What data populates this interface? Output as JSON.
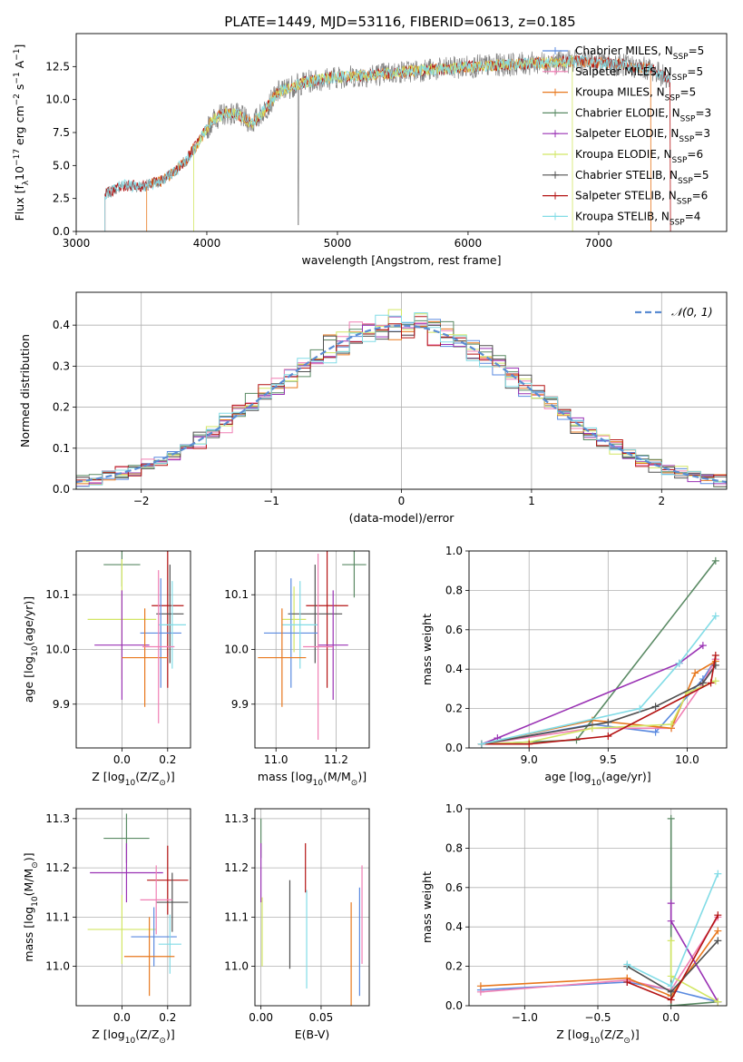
{
  "figure": {
    "title": "PLATE=1449, MJD=53116, FIBERID=0613, z=0.185"
  },
  "colors": {
    "Chabrier MILES": "#5a8ae0",
    "Salpeter MILES": "#f07fb4",
    "Kroupa MILES": "#e8781e",
    "Chabrier ELODIE": "#5a8a64",
    "Salpeter ELODIE": "#9a32b4",
    "Kroupa ELODIE": "#d2e664",
    "Chabrier STELIB": "#505050",
    "Salpeter STELIB": "#b41414",
    "Kroupa STELIB": "#82dce6",
    "observed": "#808080",
    "normal": "#5a8cd2"
  },
  "chart_data": [
    {
      "id": "spectrum",
      "type": "line",
      "xlabel": "wavelength [Angstrom, rest frame]",
      "ylabel_parts": [
        "Flux [f",
        "λ",
        "10",
        "−17",
        " erg cm",
        "−2",
        " s",
        "−1",
        " A",
        "−1",
        "]"
      ],
      "xlim": [
        3000,
        7980
      ],
      "ylim": [
        0,
        15.0
      ],
      "xticks": [
        3000,
        4000,
        5000,
        6000,
        7000
      ],
      "yticks": [
        0.0,
        2.5,
        5.0,
        7.5,
        10.0,
        12.5
      ],
      "ytick_labels": [
        "0.0",
        "2.5",
        "5.0",
        "7.5",
        "10.0",
        "12.5"
      ],
      "legend_position": "right",
      "legend": [
        {
          "name": "Chabrier MILES",
          "n": "5"
        },
        {
          "name": "Salpeter MILES",
          "n": "5"
        },
        {
          "name": "Kroupa MILES",
          "n": "5"
        },
        {
          "name": "Chabrier ELODIE",
          "n": "3"
        },
        {
          "name": "Salpeter ELODIE",
          "n": "3"
        },
        {
          "name": "Kroupa ELODIE",
          "n": "6"
        },
        {
          "name": "Chabrier STELIB",
          "n": "5"
        },
        {
          "name": "Salpeter STELIB",
          "n": "6"
        },
        {
          "name": "Kroupa STELIB",
          "n": "4"
        }
      ],
      "legend_n_label": "N",
      "legend_n_sub": "SSP",
      "observed_anchors": {
        "x": [
          3220,
          3350,
          3500,
          3650,
          3750,
          3850,
          3950,
          4050,
          4150,
          4250,
          4350,
          4450,
          4550,
          4650,
          4750,
          4850,
          5000,
          5200,
          5400,
          5600,
          5800,
          6000,
          6200,
          6400,
          6600,
          6800,
          7000,
          7200,
          7400,
          7550
        ],
        "y": [
          2.8,
          3.5,
          3.4,
          3.8,
          4.5,
          5.5,
          7.0,
          8.5,
          9.0,
          8.8,
          8.2,
          9.3,
          10.6,
          11.0,
          11.3,
          11.5,
          11.7,
          11.8,
          12.0,
          12.2,
          12.3,
          12.5,
          12.6,
          12.7,
          12.8,
          12.9,
          12.8,
          12.6,
          12.3,
          11.5
        ]
      }
    },
    {
      "id": "residuals",
      "type": "histogram",
      "xlabel": "(data-model)/error",
      "ylabel": "Normed distribution",
      "xlim": [
        -2.5,
        2.5
      ],
      "ylim": [
        0,
        0.48
      ],
      "xticks": [
        -2,
        -1,
        0,
        1,
        2
      ],
      "xtick_labels": [
        "−2",
        "−1",
        "0",
        "1",
        "2"
      ],
      "yticks": [
        0.0,
        0.1,
        0.2,
        0.3,
        0.4
      ],
      "ytick_labels": [
        "0.0",
        "0.1",
        "0.2",
        "0.3",
        "0.4"
      ],
      "legend_label": "𝒩(0, 1)",
      "legend_position": "top-right",
      "bin_width": 0.1,
      "grid": true
    },
    {
      "id": "age-vs-Z",
      "type": "errorbar",
      "xlabel_parts": [
        "Z [log",
        "10",
        "(Z/Z",
        "⊙",
        ")]"
      ],
      "ylabel_parts": [
        "age  [log",
        "10",
        "(age/yr)]"
      ],
      "xlim": [
        -0.2,
        0.3
      ],
      "ylim": [
        9.82,
        10.18
      ],
      "xticks": [
        0.0,
        0.2
      ],
      "xtick_labels": [
        "0.0",
        "0.2"
      ],
      "yticks": [
        9.9,
        10.0,
        10.1
      ],
      "ytick_labels": [
        "9.9",
        "10.0",
        "10.1"
      ],
      "points": [
        {
          "model": "Chabrier ELODIE",
          "x": 0.0,
          "xerr": 0.08,
          "y": 10.155,
          "yerr": 0.04
        },
        {
          "model": "Kroupa ELODIE",
          "x": 0.0,
          "xerr": 0.15,
          "y": 10.055,
          "yerr": 0.11
        },
        {
          "model": "Salpeter STELIB",
          "x": 0.2,
          "xerr": 0.07,
          "y": 10.08,
          "yerr": 0.15
        },
        {
          "model": "Chabrier STELIB",
          "x": 0.21,
          "xerr": 0.06,
          "y": 10.065,
          "yerr": 0.09
        },
        {
          "model": "Salpeter ELODIE",
          "x": 0.0,
          "xerr": 0.12,
          "y": 10.008,
          "yerr": 0.1
        },
        {
          "model": "Chabrier MILES",
          "x": 0.17,
          "xerr": 0.09,
          "y": 10.03,
          "yerr": 0.1
        },
        {
          "model": "Kroupa STELIB",
          "x": 0.22,
          "xerr": 0.06,
          "y": 10.045,
          "yerr": 0.08
        },
        {
          "model": "Kroupa MILES",
          "x": 0.1,
          "xerr": 0.1,
          "y": 9.985,
          "yerr": 0.09
        },
        {
          "model": "Salpeter MILES",
          "x": 0.16,
          "xerr": 0.07,
          "y": 10.005,
          "yerr": 0.14
        }
      ]
    },
    {
      "id": "age-vs-mass",
      "type": "errorbar",
      "xlabel_parts": [
        "mass [log",
        "10",
        "(M/M",
        "⊙",
        ")]"
      ],
      "xlim": [
        10.93,
        11.31
      ],
      "ylim": [
        9.82,
        10.18
      ],
      "xticks": [
        11.0,
        11.2
      ],
      "xtick_labels": [
        "11.0",
        "11.2"
      ],
      "yticks": [
        9.9,
        10.0,
        10.1
      ],
      "ytick_labels": [
        "9.9",
        "10.0",
        "10.1"
      ],
      "points": [
        {
          "model": "Chabrier ELODIE",
          "x": 11.26,
          "xerr": 0.04,
          "y": 10.155,
          "yerr": 0.06
        },
        {
          "model": "Kroupa ELODIE",
          "x": 11.06,
          "xerr": 0.04,
          "y": 10.055,
          "yerr": 0.06
        },
        {
          "model": "Salpeter STELIB",
          "x": 11.17,
          "xerr": 0.07,
          "y": 10.08,
          "yerr": 0.15
        },
        {
          "model": "Chabrier STELIB",
          "x": 11.13,
          "xerr": 0.09,
          "y": 10.065,
          "yerr": 0.09
        },
        {
          "model": "Salpeter ELODIE",
          "x": 11.19,
          "xerr": 0.05,
          "y": 10.008,
          "yerr": 0.1
        },
        {
          "model": "Chabrier MILES",
          "x": 11.05,
          "xerr": 0.09,
          "y": 10.03,
          "yerr": 0.1
        },
        {
          "model": "Kroupa STELIB",
          "x": 11.08,
          "xerr": 0.06,
          "y": 10.045,
          "yerr": 0.08
        },
        {
          "model": "Kroupa MILES",
          "x": 11.02,
          "xerr": 0.08,
          "y": 9.985,
          "yerr": 0.09
        },
        {
          "model": "Salpeter MILES",
          "x": 11.14,
          "xerr": 0.05,
          "y": 10.005,
          "yerr": 0.17
        }
      ]
    },
    {
      "id": "massweight-vs-age",
      "type": "line",
      "xlabel_parts": [
        "age  [log",
        "10",
        "(age/yr)]"
      ],
      "ylabel": "mass weight",
      "xlim": [
        8.62,
        10.25
      ],
      "ylim": [
        0,
        1.0
      ],
      "xticks": [
        9.0,
        9.5,
        10.0
      ],
      "xtick_labels": [
        "9.0",
        "9.5",
        "10.0"
      ],
      "yticks": [
        0.0,
        0.2,
        0.4,
        0.6,
        0.8,
        1.0
      ],
      "ytick_labels": [
        "0.0",
        "0.2",
        "0.4",
        "0.6",
        "0.8",
        "1.0"
      ],
      "series": [
        {
          "model": "Chabrier MILES",
          "x": [
            8.7,
            9.4,
            9.8,
            10.1,
            10.18
          ],
          "y": [
            0.02,
            0.12,
            0.08,
            0.35,
            0.45
          ]
        },
        {
          "model": "Salpeter MILES",
          "x": [
            8.7,
            9.4,
            9.9,
            10.1,
            10.18
          ],
          "y": [
            0.02,
            0.1,
            0.1,
            0.33,
            0.45
          ]
        },
        {
          "model": "Kroupa MILES",
          "x": [
            8.7,
            9.4,
            9.9,
            10.05,
            10.18
          ],
          "y": [
            0.02,
            0.14,
            0.1,
            0.38,
            0.44
          ]
        },
        {
          "model": "Chabrier ELODIE",
          "x": [
            8.7,
            9.3,
            10.18
          ],
          "y": [
            0.02,
            0.04,
            0.95
          ]
        },
        {
          "model": "Salpeter ELODIE",
          "x": [
            8.7,
            8.8,
            9.95,
            10.1
          ],
          "y": [
            0.02,
            0.05,
            0.43,
            0.52
          ]
        },
        {
          "model": "Kroupa ELODIE",
          "x": [
            8.7,
            9.0,
            9.4,
            9.9,
            10.0,
            10.18
          ],
          "y": [
            0.02,
            0.03,
            0.1,
            0.12,
            0.28,
            0.34
          ]
        },
        {
          "model": "Chabrier STELIB",
          "x": [
            8.7,
            9.5,
            9.8,
            10.1,
            10.18
          ],
          "y": [
            0.02,
            0.13,
            0.21,
            0.33,
            0.42
          ]
        },
        {
          "model": "Salpeter STELIB",
          "x": [
            8.7,
            9.0,
            9.5,
            10.15,
            10.18
          ],
          "y": [
            0.02,
            0.02,
            0.06,
            0.33,
            0.47
          ]
        },
        {
          "model": "Kroupa STELIB",
          "x": [
            8.7,
            9.7,
            9.95,
            10.18
          ],
          "y": [
            0.02,
            0.2,
            0.43,
            0.67
          ]
        }
      ]
    },
    {
      "id": "mass-vs-Z",
      "type": "errorbar",
      "xlabel_parts": [
        "Z [log",
        "10",
        "(Z/Z",
        "⊙",
        ")]"
      ],
      "ylabel_parts": [
        "mass [log",
        "10",
        "(M/M",
        "⊙",
        ")]"
      ],
      "xlim": [
        -0.2,
        0.3
      ],
      "ylim": [
        10.92,
        11.32
      ],
      "xticks": [
        0.0,
        0.2
      ],
      "xtick_labels": [
        "0.0",
        "0.2"
      ],
      "yticks": [
        11.0,
        11.1,
        11.2,
        11.3
      ],
      "ytick_labels": [
        "11.0",
        "11.1",
        "11.2",
        "11.3"
      ],
      "points": [
        {
          "model": "Chabrier ELODIE",
          "x": 0.02,
          "xerr": 0.1,
          "y": 11.26,
          "yerr": 0.05
        },
        {
          "model": "Salpeter ELODIE",
          "x": 0.02,
          "xerr": 0.16,
          "y": 11.19,
          "yerr": 0.06
        },
        {
          "model": "Kroupa ELODIE",
          "x": 0.0,
          "xerr": 0.15,
          "y": 11.075,
          "yerr": 0.07
        },
        {
          "model": "Salpeter STELIB",
          "x": 0.2,
          "xerr": 0.09,
          "y": 11.175,
          "yerr": 0.07
        },
        {
          "model": "Chabrier STELIB",
          "x": 0.22,
          "xerr": 0.07,
          "y": 11.13,
          "yerr": 0.06
        },
        {
          "model": "Salpeter MILES",
          "x": 0.15,
          "xerr": 0.07,
          "y": 11.135,
          "yerr": 0.07
        },
        {
          "model": "Chabrier MILES",
          "x": 0.14,
          "xerr": 0.1,
          "y": 11.06,
          "yerr": 0.06
        },
        {
          "model": "Kroupa STELIB",
          "x": 0.21,
          "xerr": 0.05,
          "y": 11.045,
          "yerr": 0.06
        },
        {
          "model": "Kroupa MILES",
          "x": 0.12,
          "xerr": 0.11,
          "y": 11.02,
          "yerr": 0.08
        }
      ]
    },
    {
      "id": "mass-vs-EBV",
      "type": "errorbar",
      "xlabel": "E(B-V)",
      "xlim": [
        -0.005,
        0.09
      ],
      "ylim": [
        10.92,
        11.32
      ],
      "xticks": [
        0.0,
        0.05
      ],
      "xtick_labels": [
        "0.00",
        "0.05"
      ],
      "yticks": [
        11.0,
        11.1,
        11.2,
        11.3
      ],
      "ytick_labels": [
        "11.0",
        "11.1",
        "11.2",
        "11.3"
      ],
      "points": [
        {
          "model": "Chabrier ELODIE",
          "x": 0.0,
          "xerr": 0,
          "y": 11.26,
          "yerr": 0.04
        },
        {
          "model": "Salpeter ELODIE",
          "x": 0.0,
          "xerr": 0,
          "y": 11.19,
          "yerr": 0.06
        },
        {
          "model": "Kroupa ELODIE",
          "x": 0.001,
          "xerr": 0,
          "y": 11.07,
          "yerr": 0.07
        },
        {
          "model": "Chabrier STELIB",
          "x": 0.024,
          "xerr": 0,
          "y": 11.085,
          "yerr": 0.09
        },
        {
          "model": "Salpeter STELIB",
          "x": 0.037,
          "xerr": 0,
          "y": 11.2,
          "yerr": 0.05
        },
        {
          "model": "Kroupa STELIB",
          "x": 0.038,
          "xerr": 0,
          "y": 11.055,
          "yerr": 0.1
        },
        {
          "model": "Kroupa MILES",
          "x": 0.075,
          "xerr": 0,
          "y": 11.02,
          "yerr": 0.11
        },
        {
          "model": "Chabrier MILES",
          "x": 0.082,
          "xerr": 0,
          "y": 11.05,
          "yerr": 0.11
        },
        {
          "model": "Salpeter MILES",
          "x": 0.084,
          "xerr": 0,
          "y": 11.105,
          "yerr": 0.1
        }
      ]
    },
    {
      "id": "massweight-vs-Z",
      "type": "line",
      "xlabel_parts": [
        "Z [log",
        "10",
        "(Z/Z",
        "⊙",
        ")]"
      ],
      "ylabel": "mass weight",
      "xlim": [
        -1.38,
        0.38
      ],
      "ylim": [
        0,
        1.0
      ],
      "xticks": [
        -1.0,
        -0.5,
        0.0
      ],
      "xtick_labels": [
        "−1.0",
        "−0.5",
        "0.0"
      ],
      "yticks": [
        0.0,
        0.2,
        0.4,
        0.6,
        0.8,
        1.0
      ],
      "ytick_labels": [
        "0.0",
        "0.2",
        "0.4",
        "0.6",
        "0.8",
        "1.0"
      ],
      "series": [
        {
          "model": "Chabrier MILES",
          "x": [
            -1.3,
            -0.3,
            0.0,
            0.32
          ],
          "y": [
            0.08,
            0.12,
            0.08,
            0.02
          ]
        },
        {
          "model": "Salpeter MILES",
          "x": [
            -1.3,
            -0.3,
            0.0,
            0.32
          ],
          "y": [
            0.07,
            0.13,
            0.08,
            0.45
          ]
        },
        {
          "model": "Kroupa MILES",
          "x": [
            -1.3,
            -0.3,
            0.0,
            0.32
          ],
          "y": [
            0.1,
            0.14,
            0.05,
            0.38
          ]
        },
        {
          "model": "Chabrier ELODIE",
          "x": [
            0.0,
            0.0,
            0.32
          ],
          "y": [
            0.95,
            0.0,
            0.02
          ]
        },
        {
          "model": "Salpeter ELODIE",
          "x": [
            0.0,
            0.0,
            0.32
          ],
          "y": [
            0.52,
            0.43,
            0.02
          ]
        },
        {
          "model": "Kroupa ELODIE",
          "x": [
            0.0,
            0.0,
            0.32
          ],
          "y": [
            0.33,
            0.15,
            0.02
          ]
        },
        {
          "model": "Chabrier STELIB",
          "x": [
            -0.3,
            0.0,
            0.32
          ],
          "y": [
            0.2,
            0.07,
            0.33
          ]
        },
        {
          "model": "Salpeter STELIB",
          "x": [
            -0.3,
            0.0,
            0.32
          ],
          "y": [
            0.12,
            0.03,
            0.46
          ]
        },
        {
          "model": "Kroupa STELIB",
          "x": [
            -0.3,
            0.0,
            0.32
          ],
          "y": [
            0.21,
            0.1,
            0.67
          ]
        }
      ]
    }
  ]
}
